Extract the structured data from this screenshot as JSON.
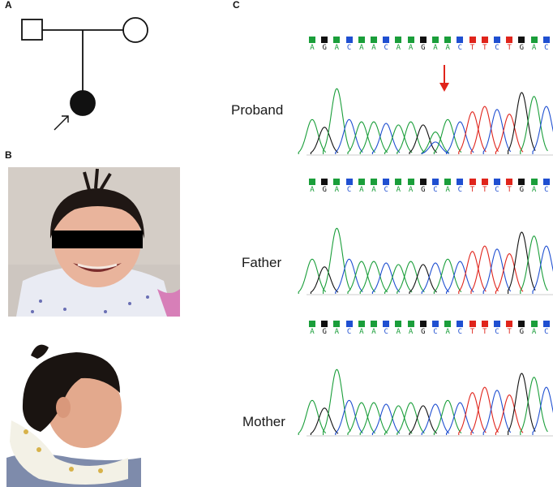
{
  "panels": {
    "a_label": "A",
    "b_label": "B",
    "c_label": "C"
  },
  "pedigree": {
    "father": "square",
    "mother": "circle",
    "proband": "filled-circle",
    "proband_marker": "arrow"
  },
  "base_colors": {
    "A": "#1a9e3a",
    "G": "#111111",
    "C": "#1f4fd1",
    "T": "#e0241b"
  },
  "traces": [
    {
      "label": "Proband",
      "sequence": [
        "A",
        "G",
        "A",
        "C",
        "A",
        "A",
        "C",
        "A",
        "A",
        "G",
        "A",
        "A",
        "C",
        "T",
        "T",
        "C",
        "T",
        "G",
        "A",
        "C"
      ],
      "mutation_index": 10,
      "heterozygous": true
    },
    {
      "label": "Father",
      "sequence": [
        "A",
        "G",
        "A",
        "C",
        "A",
        "A",
        "C",
        "A",
        "A",
        "G",
        "C",
        "A",
        "C",
        "T",
        "T",
        "C",
        "T",
        "G",
        "A",
        "C"
      ]
    },
    {
      "label": "Mother",
      "sequence": [
        "A",
        "G",
        "A",
        "C",
        "A",
        "A",
        "C",
        "A",
        "A",
        "G",
        "C",
        "A",
        "C",
        "T",
        "T",
        "C",
        "T",
        "G",
        "A",
        "C"
      ]
    }
  ],
  "mutation_arrow_color": "#e0241b"
}
